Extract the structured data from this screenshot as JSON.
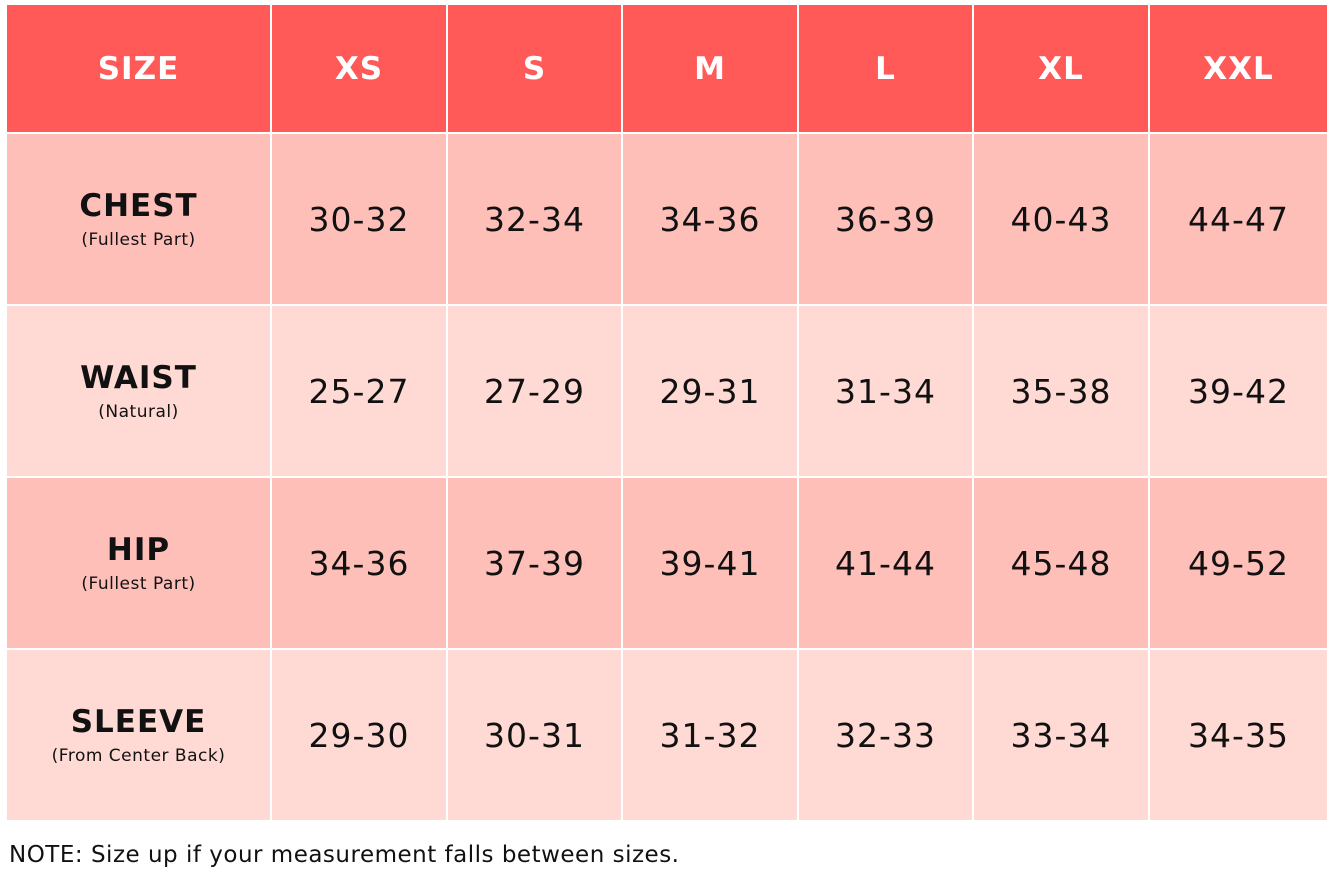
{
  "header": {
    "size_label": "SIZE",
    "sizes": [
      "XS",
      "S",
      "M",
      "L",
      "XL",
      "XXL"
    ]
  },
  "rows": [
    {
      "label": "CHEST",
      "sub": "(Fullest Part)",
      "values": [
        "30-32",
        "32-34",
        "34-36",
        "36-39",
        "40-43",
        "44-47"
      ]
    },
    {
      "label": "WAIST",
      "sub": "(Natural)",
      "values": [
        "25-27",
        "27-29",
        "29-31",
        "31-34",
        "35-38",
        "39-42"
      ]
    },
    {
      "label": "HIP",
      "sub": "(Fullest Part)",
      "values": [
        "34-36",
        "37-39",
        "39-41",
        "41-44",
        "45-48",
        "49-52"
      ]
    },
    {
      "label": "SLEEVE",
      "sub": "(From Center Back)",
      "values": [
        "29-30",
        "30-31",
        "31-32",
        "32-33",
        "33-34",
        "34-35"
      ]
    }
  ],
  "note": "NOTE: Size up if your measurement falls between sizes.",
  "colors": {
    "header": "#FF5A58",
    "row_odd": "#FFBFB9",
    "row_even": "#FFD9D3"
  }
}
